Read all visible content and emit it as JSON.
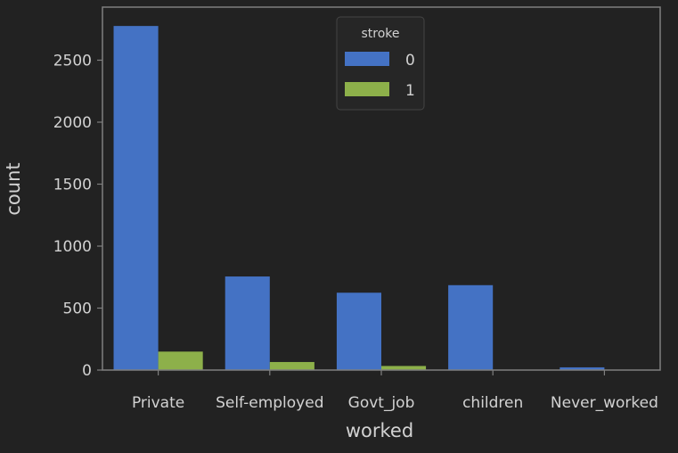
{
  "chart_data": {
    "type": "bar",
    "categories": [
      "Private",
      "Self-employed",
      "Govt_job",
      "children",
      "Never_worked"
    ],
    "series": [
      {
        "name": "0",
        "values": [
          2776,
          755,
          624,
          685,
          22
        ],
        "color": "#4472c4"
      },
      {
        "name": "1",
        "values": [
          149,
          65,
          33,
          2,
          0
        ],
        "color": "#8db04a"
      }
    ],
    "xlabel": "worked",
    "ylabel": "count",
    "ylim": [
      0,
      2928
    ],
    "yticks": [
      0,
      500,
      1000,
      1500,
      2000,
      2500
    ],
    "grid": false,
    "legend": {
      "title": "stroke",
      "placement": "top-center"
    }
  }
}
